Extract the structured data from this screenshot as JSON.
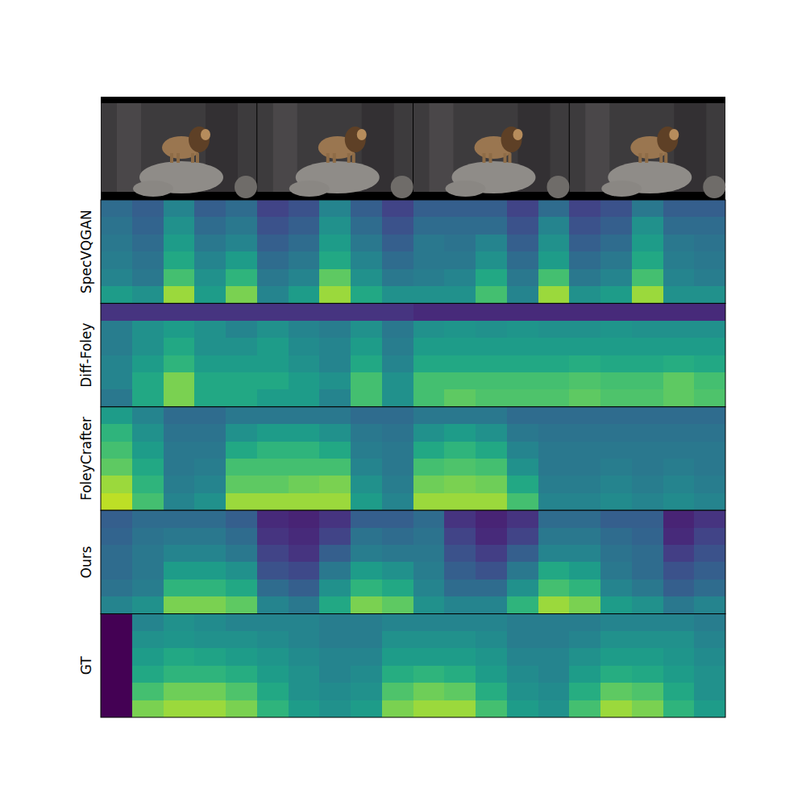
{
  "chart_data": [
    {
      "type": "heatmap",
      "ylabel": "SpecVQGAN",
      "tick_labels": false,
      "cells": [
        [
          0.35,
          0.3,
          0.45,
          0.3,
          0.35,
          0.2,
          0.25,
          0.45,
          0.3,
          0.2,
          0.3,
          0.3,
          0.3,
          0.2,
          0.35,
          0.2,
          0.25,
          0.4,
          0.3,
          0.3
        ],
        [
          0.38,
          0.32,
          0.5,
          0.35,
          0.4,
          0.25,
          0.3,
          0.5,
          0.35,
          0.25,
          0.35,
          0.35,
          0.35,
          0.25,
          0.45,
          0.25,
          0.3,
          0.5,
          0.35,
          0.35
        ],
        [
          0.4,
          0.35,
          0.55,
          0.4,
          0.45,
          0.3,
          0.35,
          0.55,
          0.4,
          0.3,
          0.4,
          0.38,
          0.45,
          0.3,
          0.5,
          0.3,
          0.35,
          0.55,
          0.4,
          0.38
        ],
        [
          0.42,
          0.38,
          0.6,
          0.45,
          0.55,
          0.35,
          0.4,
          0.6,
          0.45,
          0.35,
          0.4,
          0.4,
          0.5,
          0.35,
          0.55,
          0.35,
          0.4,
          0.6,
          0.42,
          0.4
        ],
        [
          0.45,
          0.4,
          0.7,
          0.5,
          0.65,
          0.4,
          0.45,
          0.75,
          0.5,
          0.4,
          0.42,
          0.45,
          0.6,
          0.4,
          0.7,
          0.4,
          0.45,
          0.7,
          0.45,
          0.42
        ],
        [
          0.55,
          0.5,
          0.85,
          0.55,
          0.8,
          0.45,
          0.55,
          0.85,
          0.6,
          0.5,
          0.5,
          0.5,
          0.7,
          0.45,
          0.85,
          0.5,
          0.55,
          0.85,
          0.5,
          0.5
        ]
      ]
    },
    {
      "type": "heatmap",
      "ylabel": "Diff-Foley",
      "tick_labels": false,
      "cells": [
        [
          0.15,
          0.15,
          0.15,
          0.15,
          0.15,
          0.15,
          0.15,
          0.15,
          0.15,
          0.15,
          0.12,
          0.12,
          0.12,
          0.12,
          0.12,
          0.12,
          0.12,
          0.12,
          0.12,
          0.12
        ],
        [
          0.42,
          0.5,
          0.55,
          0.5,
          0.45,
          0.5,
          0.45,
          0.42,
          0.5,
          0.4,
          0.5,
          0.52,
          0.5,
          0.52,
          0.5,
          0.5,
          0.52,
          0.5,
          0.5,
          0.5
        ],
        [
          0.42,
          0.5,
          0.6,
          0.5,
          0.5,
          0.55,
          0.48,
          0.45,
          0.55,
          0.42,
          0.55,
          0.55,
          0.55,
          0.55,
          0.55,
          0.55,
          0.55,
          0.55,
          0.55,
          0.55
        ],
        [
          0.45,
          0.55,
          0.65,
          0.55,
          0.55,
          0.55,
          0.5,
          0.45,
          0.6,
          0.45,
          0.6,
          0.6,
          0.6,
          0.6,
          0.6,
          0.62,
          0.6,
          0.6,
          0.62,
          0.6
        ],
        [
          0.45,
          0.6,
          0.8,
          0.6,
          0.6,
          0.6,
          0.55,
          0.5,
          0.7,
          0.5,
          0.7,
          0.7,
          0.7,
          0.7,
          0.7,
          0.72,
          0.7,
          0.7,
          0.75,
          0.7
        ],
        [
          0.4,
          0.6,
          0.8,
          0.6,
          0.6,
          0.55,
          0.55,
          0.45,
          0.7,
          0.5,
          0.7,
          0.75,
          0.72,
          0.72,
          0.72,
          0.75,
          0.72,
          0.72,
          0.75,
          0.72
        ]
      ]
    },
    {
      "type": "heatmap",
      "ylabel": "FoleyCrafter",
      "tick_labels": false,
      "cells": [
        [
          0.55,
          0.45,
          0.35,
          0.35,
          0.4,
          0.4,
          0.4,
          0.4,
          0.35,
          0.35,
          0.4,
          0.4,
          0.4,
          0.35,
          0.35,
          0.35,
          0.35,
          0.35,
          0.35,
          0.35
        ],
        [
          0.65,
          0.5,
          0.38,
          0.38,
          0.5,
          0.55,
          0.55,
          0.5,
          0.4,
          0.38,
          0.5,
          0.55,
          0.5,
          0.4,
          0.38,
          0.38,
          0.38,
          0.38,
          0.38,
          0.38
        ],
        [
          0.7,
          0.55,
          0.4,
          0.4,
          0.6,
          0.65,
          0.65,
          0.6,
          0.42,
          0.4,
          0.6,
          0.65,
          0.6,
          0.45,
          0.4,
          0.4,
          0.4,
          0.4,
          0.4,
          0.4
        ],
        [
          0.75,
          0.6,
          0.4,
          0.42,
          0.7,
          0.7,
          0.7,
          0.7,
          0.45,
          0.4,
          0.7,
          0.72,
          0.7,
          0.5,
          0.4,
          0.4,
          0.42,
          0.4,
          0.42,
          0.4
        ],
        [
          0.85,
          0.65,
          0.42,
          0.45,
          0.75,
          0.75,
          0.78,
          0.8,
          0.5,
          0.42,
          0.78,
          0.8,
          0.78,
          0.6,
          0.42,
          0.42,
          0.45,
          0.42,
          0.45,
          0.42
        ],
        [
          0.9,
          0.7,
          0.45,
          0.5,
          0.85,
          0.85,
          0.85,
          0.85,
          0.55,
          0.45,
          0.85,
          0.85,
          0.85,
          0.7,
          0.45,
          0.45,
          0.48,
          0.45,
          0.48,
          0.45
        ]
      ]
    },
    {
      "type": "heatmap",
      "ylabel": "Ours",
      "tick_labels": false,
      "cells": [
        [
          0.3,
          0.35,
          0.35,
          0.35,
          0.3,
          0.12,
          0.1,
          0.15,
          0.3,
          0.3,
          0.35,
          0.15,
          0.1,
          0.15,
          0.35,
          0.35,
          0.3,
          0.3,
          0.1,
          0.15
        ],
        [
          0.32,
          0.38,
          0.4,
          0.4,
          0.35,
          0.15,
          0.12,
          0.2,
          0.38,
          0.35,
          0.38,
          0.2,
          0.12,
          0.2,
          0.4,
          0.4,
          0.35,
          0.32,
          0.12,
          0.2
        ],
        [
          0.35,
          0.4,
          0.45,
          0.45,
          0.4,
          0.2,
          0.15,
          0.3,
          0.42,
          0.4,
          0.4,
          0.25,
          0.18,
          0.3,
          0.45,
          0.45,
          0.38,
          0.35,
          0.18,
          0.25
        ],
        [
          0.35,
          0.4,
          0.55,
          0.55,
          0.5,
          0.25,
          0.22,
          0.4,
          0.55,
          0.5,
          0.42,
          0.3,
          0.25,
          0.4,
          0.6,
          0.55,
          0.4,
          0.35,
          0.25,
          0.3
        ],
        [
          0.38,
          0.42,
          0.65,
          0.65,
          0.6,
          0.35,
          0.3,
          0.5,
          0.65,
          0.6,
          0.45,
          0.35,
          0.35,
          0.5,
          0.7,
          0.65,
          0.45,
          0.4,
          0.3,
          0.35
        ],
        [
          0.45,
          0.5,
          0.8,
          0.8,
          0.75,
          0.45,
          0.4,
          0.6,
          0.8,
          0.75,
          0.5,
          0.45,
          0.45,
          0.65,
          0.85,
          0.8,
          0.55,
          0.5,
          0.4,
          0.45
        ]
      ]
    },
    {
      "type": "heatmap",
      "ylabel": "GT",
      "tick_labels": false,
      "cells": [
        [
          0.0,
          0.45,
          0.5,
          0.48,
          0.45,
          0.45,
          0.45,
          0.42,
          0.42,
          0.45,
          0.45,
          0.45,
          0.45,
          0.42,
          0.42,
          0.42,
          0.45,
          0.45,
          0.45,
          0.42
        ],
        [
          0.0,
          0.5,
          0.52,
          0.5,
          0.5,
          0.48,
          0.45,
          0.42,
          0.42,
          0.5,
          0.5,
          0.5,
          0.48,
          0.42,
          0.42,
          0.45,
          0.5,
          0.5,
          0.5,
          0.45
        ],
        [
          0.0,
          0.55,
          0.6,
          0.58,
          0.55,
          0.52,
          0.48,
          0.45,
          0.45,
          0.55,
          0.55,
          0.55,
          0.52,
          0.45,
          0.45,
          0.5,
          0.55,
          0.55,
          0.52,
          0.48
        ],
        [
          0.0,
          0.6,
          0.65,
          0.65,
          0.62,
          0.55,
          0.5,
          0.45,
          0.48,
          0.62,
          0.65,
          0.62,
          0.55,
          0.48,
          0.45,
          0.55,
          0.62,
          0.6,
          0.55,
          0.5
        ],
        [
          0.0,
          0.7,
          0.78,
          0.78,
          0.72,
          0.6,
          0.5,
          0.48,
          0.5,
          0.72,
          0.78,
          0.75,
          0.62,
          0.5,
          0.48,
          0.62,
          0.75,
          0.72,
          0.6,
          0.5
        ],
        [
          0.0,
          0.8,
          0.85,
          0.85,
          0.8,
          0.65,
          0.55,
          0.5,
          0.55,
          0.8,
          0.85,
          0.85,
          0.7,
          0.55,
          0.5,
          0.7,
          0.85,
          0.8,
          0.65,
          0.55
        ]
      ]
    }
  ]
}
